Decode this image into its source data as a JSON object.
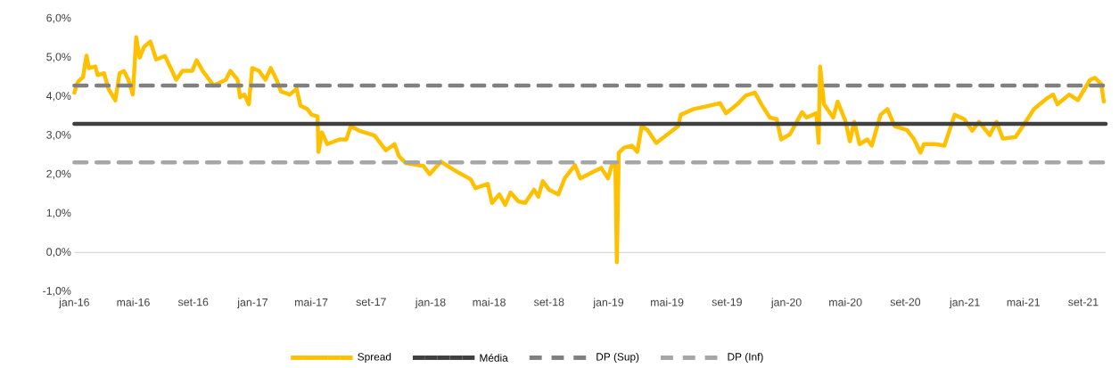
{
  "chart_data": {
    "type": "line",
    "x": [
      "2016-01-01",
      "2016-01-08",
      "2016-01-19",
      "2016-01-26",
      "2016-01-31",
      "2016-02-13",
      "2016-02-18",
      "2016-03-02",
      "2016-03-11",
      "2016-03-25",
      "2016-04-03",
      "2016-04-12",
      "2016-04-21",
      "2016-04-30",
      "2016-05-07",
      "2016-05-14",
      "2016-05-23",
      "2016-06-05",
      "2016-06-17",
      "2016-07-05",
      "2016-07-28",
      "2016-08-10",
      "2016-08-30",
      "2016-09-08",
      "2016-09-20",
      "2016-10-13",
      "2016-11-07",
      "2016-11-16",
      "2016-12-01",
      "2016-12-06",
      "2016-12-15",
      "2016-12-24",
      "2016-12-31",
      "2017-01-14",
      "2017-01-27",
      "2017-02-07",
      "2017-02-19",
      "2017-02-28",
      "2017-03-18",
      "2017-04-01",
      "2017-04-09",
      "2017-04-23",
      "2017-05-02",
      "2017-05-14",
      "2017-05-16",
      "2017-05-23",
      "2017-06-03",
      "2017-06-28",
      "2017-07-12",
      "2017-07-21",
      "2017-08-08",
      "2017-09-01",
      "2017-09-08",
      "2017-10-01",
      "2017-10-19",
      "2017-10-28",
      "2017-11-11",
      "2017-12-17",
      "2017-12-30",
      "2018-01-22",
      "2018-02-16",
      "2018-03-24",
      "2018-04-03",
      "2018-04-28",
      "2018-05-07",
      "2018-05-22",
      "2018-06-03",
      "2018-06-14",
      "2018-06-30",
      "2018-07-14",
      "2018-08-01",
      "2018-08-10",
      "2018-08-19",
      "2018-09-01",
      "2018-09-20",
      "2018-10-03",
      "2018-10-24",
      "2018-11-04",
      "2018-11-29",
      "2018-12-17",
      "2018-12-31",
      "2019-01-09",
      "2019-01-15",
      "2019-01-18",
      "2019-01-22",
      "2019-02-02",
      "2019-02-18",
      "2019-03-01",
      "2019-03-10",
      "2019-03-22",
      "2019-04-09",
      "2019-05-02",
      "2019-05-24",
      "2019-05-29",
      "2019-06-25",
      "2019-07-25",
      "2019-08-18",
      "2019-08-30",
      "2019-09-22",
      "2019-10-10",
      "2019-10-28",
      "2019-11-15",
      "2019-11-28",
      "2019-12-12",
      "2019-12-21",
      "2020-01-08",
      "2020-02-02",
      "2020-02-11",
      "2020-03-02",
      "2020-03-07",
      "2020-03-10",
      "2020-03-18",
      "2020-04-06",
      "2020-04-15",
      "2020-05-01",
      "2020-05-10",
      "2020-05-19",
      "2020-05-30",
      "2020-06-15",
      "2020-06-24",
      "2020-07-12",
      "2020-07-26",
      "2020-08-10",
      "2020-09-04",
      "2020-09-18",
      "2020-10-02",
      "2020-10-09",
      "2020-11-02",
      "2020-11-20",
      "2020-12-11",
      "2020-12-31",
      "2021-01-16",
      "2021-01-30",
      "2021-02-21",
      "2021-03-07",
      "2021-03-20",
      "2021-04-15",
      "2021-05-03",
      "2021-05-23",
      "2021-06-17",
      "2021-07-01",
      "2021-07-10",
      "2021-08-03",
      "2021-08-21",
      "2021-09-15",
      "2021-09-25",
      "2021-10-08",
      "2021-10-13"
    ],
    "series": [
      {
        "name": "Spread",
        "color": "#ffc000",
        "line_style": "solid",
        "values": [
          4.1,
          4.37,
          4.5,
          5.05,
          4.73,
          4.77,
          4.55,
          4.6,
          4.2,
          3.9,
          4.6,
          4.65,
          4.43,
          4.05,
          5.52,
          5.0,
          5.27,
          5.41,
          4.95,
          5.04,
          4.43,
          4.66,
          4.66,
          4.93,
          4.66,
          4.28,
          4.43,
          4.66,
          4.43,
          3.98,
          4.05,
          3.8,
          4.73,
          4.66,
          4.43,
          4.73,
          4.43,
          4.13,
          4.05,
          4.2,
          3.76,
          3.68,
          3.53,
          3.49,
          2.58,
          3.08,
          2.78,
          2.9,
          2.9,
          3.24,
          3.12,
          3.03,
          3.0,
          2.62,
          2.78,
          2.47,
          2.29,
          2.22,
          2.01,
          2.33,
          2.13,
          1.88,
          1.65,
          1.76,
          1.27,
          1.49,
          1.22,
          1.54,
          1.31,
          1.27,
          1.61,
          1.43,
          1.83,
          1.61,
          1.49,
          1.9,
          2.24,
          1.9,
          2.06,
          2.17,
          1.9,
          2.29,
          2.24,
          -0.25,
          2.56,
          2.69,
          2.74,
          2.58,
          3.24,
          3.14,
          2.81,
          3.03,
          3.24,
          3.53,
          3.68,
          3.76,
          3.83,
          3.57,
          3.8,
          4.03,
          4.1,
          3.71,
          3.46,
          3.42,
          2.9,
          3.03,
          3.6,
          3.46,
          3.57,
          2.81,
          4.77,
          3.8,
          3.46,
          3.87,
          3.37,
          2.85,
          3.35,
          2.78,
          2.9,
          2.74,
          3.53,
          3.68,
          3.24,
          3.14,
          2.92,
          2.56,
          2.78,
          2.78,
          2.74,
          3.53,
          3.42,
          3.12,
          3.35,
          3.01,
          3.35,
          2.92,
          2.96,
          3.3,
          3.68,
          3.94,
          4.05,
          3.8,
          4.05,
          3.91,
          4.43,
          4.48,
          4.32,
          3.87
        ]
      },
      {
        "name": "Média",
        "color": "#404040",
        "line_style": "solid",
        "x": [
          "2016-01-01",
          "2021-10-17"
        ],
        "values": [
          3.3,
          3.3
        ]
      },
      {
        "name": "DP (Sup)",
        "color": "#808080",
        "line_style": "dashed",
        "x": [
          "2016-01-01",
          "2021-10-17"
        ],
        "values": [
          4.28,
          4.28
        ]
      },
      {
        "name": "DP (Inf)",
        "color": "#a6a6a6",
        "line_style": "dashed",
        "x": [
          "2016-01-01",
          "2021-10-17"
        ],
        "values": [
          2.31,
          2.31
        ]
      }
    ],
    "xlim": [
      "2016-01-01",
      "2021-10-17"
    ],
    "xticks": [
      {
        "value": "2016-01-01",
        "label": "jan-16"
      },
      {
        "value": "2016-05-01",
        "label": "mai-16"
      },
      {
        "value": "2016-09-01",
        "label": "set-16"
      },
      {
        "value": "2017-01-01",
        "label": "jan-17"
      },
      {
        "value": "2017-05-01",
        "label": "mai-17"
      },
      {
        "value": "2017-09-01",
        "label": "set-17"
      },
      {
        "value": "2018-01-01",
        "label": "jan-18"
      },
      {
        "value": "2018-05-01",
        "label": "mai-18"
      },
      {
        "value": "2018-09-01",
        "label": "set-18"
      },
      {
        "value": "2019-01-01",
        "label": "jan-19"
      },
      {
        "value": "2019-05-01",
        "label": "mai-19"
      },
      {
        "value": "2019-09-01",
        "label": "set-19"
      },
      {
        "value": "2020-01-01",
        "label": "jan-20"
      },
      {
        "value": "2020-05-01",
        "label": "mai-20"
      },
      {
        "value": "2020-09-01",
        "label": "set-20"
      },
      {
        "value": "2021-01-01",
        "label": "jan-21"
      },
      {
        "value": "2021-05-01",
        "label": "mai-21"
      },
      {
        "value": "2021-09-01",
        "label": "set-21"
      }
    ],
    "ylim": [
      -1,
      6
    ],
    "yticks": [
      {
        "value": -1,
        "label": "-1,0%"
      },
      {
        "value": 0,
        "label": "0,0%"
      },
      {
        "value": 1,
        "label": "1,0%"
      },
      {
        "value": 2,
        "label": "2,0%"
      },
      {
        "value": 3,
        "label": "3,0%"
      },
      {
        "value": 4,
        "label": "4,0%"
      },
      {
        "value": 5,
        "label": "5,0%"
      },
      {
        "value": 6,
        "label": "6,0%"
      }
    ],
    "legend": "bottom"
  }
}
